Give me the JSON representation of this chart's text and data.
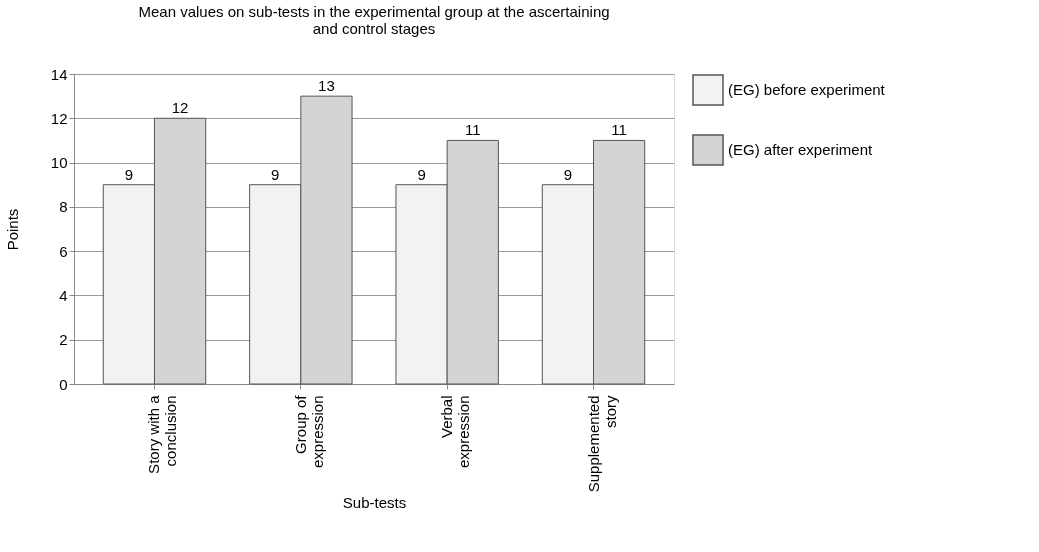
{
  "chart_data": {
    "type": "bar",
    "title": "Mean values on sub-tests in the experimental group at the ascertaining and control stages",
    "xlabel": "Sub-tests",
    "ylabel": "Points",
    "categories": [
      "Story with a conclusion",
      "Group of expression",
      "Verbal expression",
      "Supplemented story"
    ],
    "series": [
      {
        "name": "(EG) before experiment",
        "color": "#f2f2f2",
        "values": [
          9,
          9,
          9,
          9
        ]
      },
      {
        "name": "(EG) after experiment",
        "color": "#d4d4d4",
        "values": [
          12,
          13,
          11,
          11
        ]
      }
    ],
    "ylim": [
      0,
      14
    ],
    "yticks": [
      0,
      2,
      4,
      6,
      8,
      10,
      12,
      14
    ],
    "grid": "y",
    "legend": "right",
    "data_labels": true
  }
}
